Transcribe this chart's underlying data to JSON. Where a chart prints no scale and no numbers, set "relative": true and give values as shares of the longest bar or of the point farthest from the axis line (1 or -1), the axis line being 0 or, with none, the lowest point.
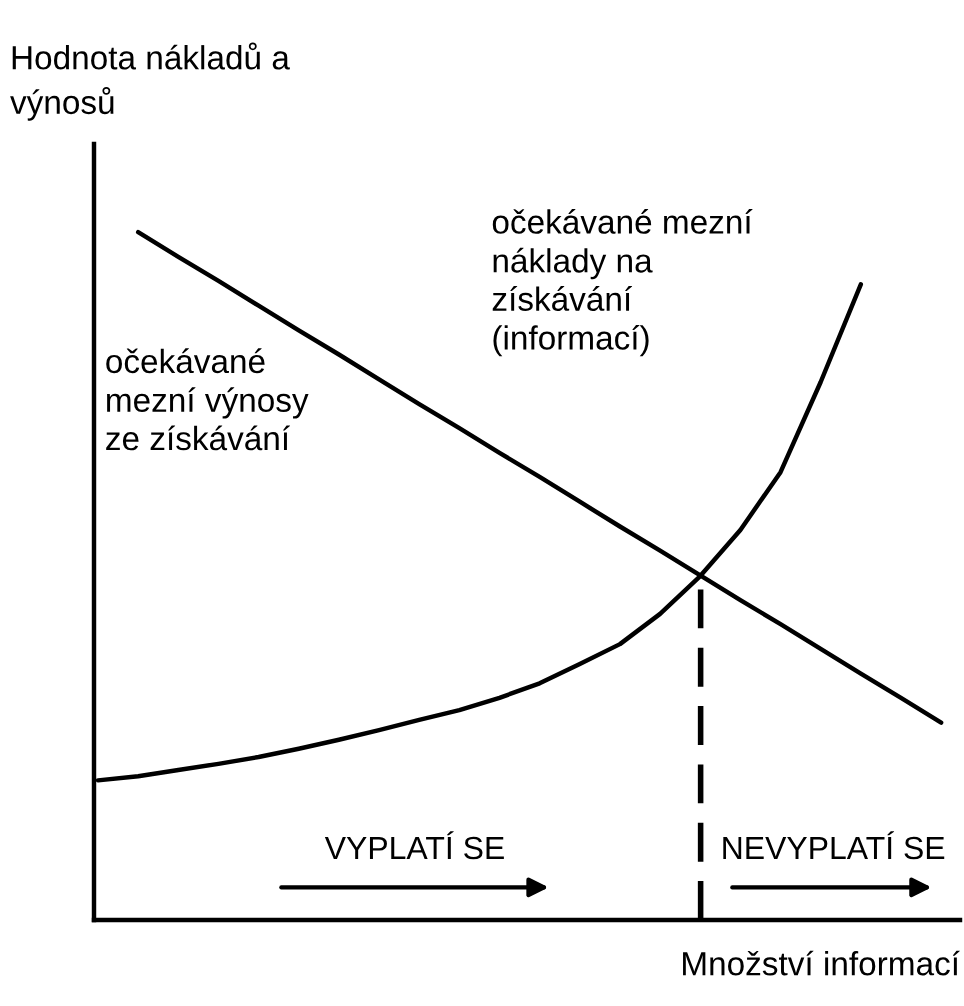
{
  "chart_data": {
    "type": "line",
    "relative": true,
    "xlabel": "Množství informací",
    "ylabel": "Hodnota nákladů a\nvýnosů",
    "categories": [
      null,
      null,
      null,
      null,
      null,
      null,
      null,
      null,
      null,
      null,
      null,
      null,
      null,
      null,
      null,
      null,
      null,
      null,
      null,
      null,
      null,
      null
    ],
    "series": [
      {
        "name": "očekávané\nmezní výnosy\nze získávání",
        "color": "#000000",
        "values": [
          null,
          1.0,
          0.964,
          0.929,
          0.893,
          0.857,
          0.822,
          0.786,
          0.75,
          0.715,
          0.679,
          0.644,
          0.608,
          0.572,
          0.537,
          0.501,
          0.465,
          0.43,
          0.394,
          0.358,
          0.323,
          0.287
        ]
      },
      {
        "name": "očekávané mezní\nnáklady na\nzískávání\n(informací)",
        "color": "#000000",
        "values": [
          0.203,
          0.209,
          0.218,
          0.227,
          0.237,
          0.249,
          0.262,
          0.276,
          0.291,
          0.305,
          0.323,
          0.344,
          0.372,
          0.401,
          0.445,
          0.5,
          0.567,
          0.651,
          0.782,
          0.924,
          null,
          null
        ]
      }
    ],
    "annotations": [
      "VYPLATÍ SE",
      "NEVYPLATÍ SE"
    ]
  }
}
